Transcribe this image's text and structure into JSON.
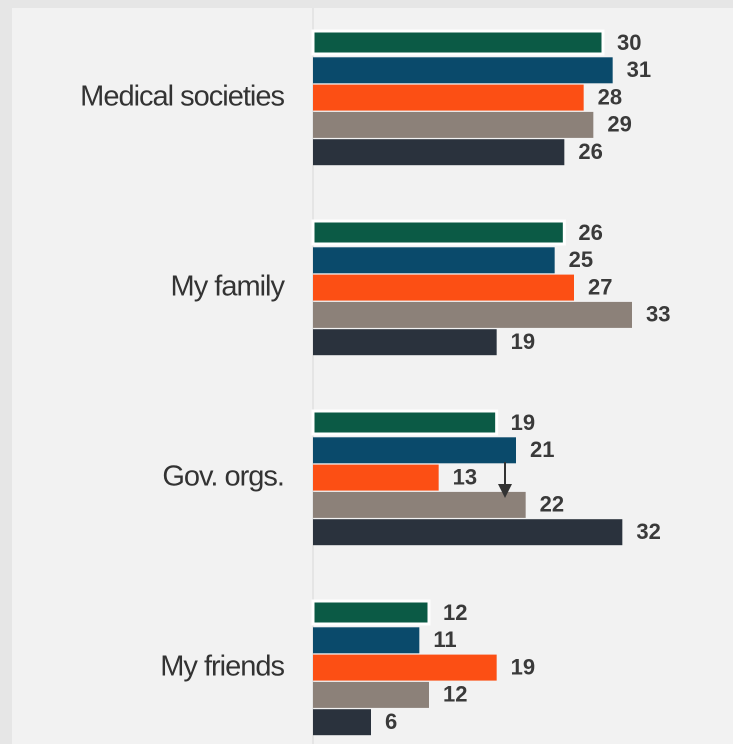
{
  "chart_data": {
    "type": "barh",
    "categories": [
      "Medical societies",
      "My family",
      "Gov. orgs.",
      "My friends"
    ],
    "series": [
      {
        "color": "#0b5a45",
        "values": [
          30,
          26,
          19,
          12
        ]
      },
      {
        "color": "#0a4a6b",
        "values": [
          31,
          25,
          21,
          11
        ]
      },
      {
        "color": "#fc4f14",
        "values": [
          28,
          27,
          13,
          19
        ]
      },
      {
        "color": "#8c8179",
        "values": [
          29,
          33,
          22,
          12
        ]
      },
      {
        "color": "#2a323d",
        "values": [
          26,
          19,
          32,
          6
        ]
      }
    ]
  }
}
